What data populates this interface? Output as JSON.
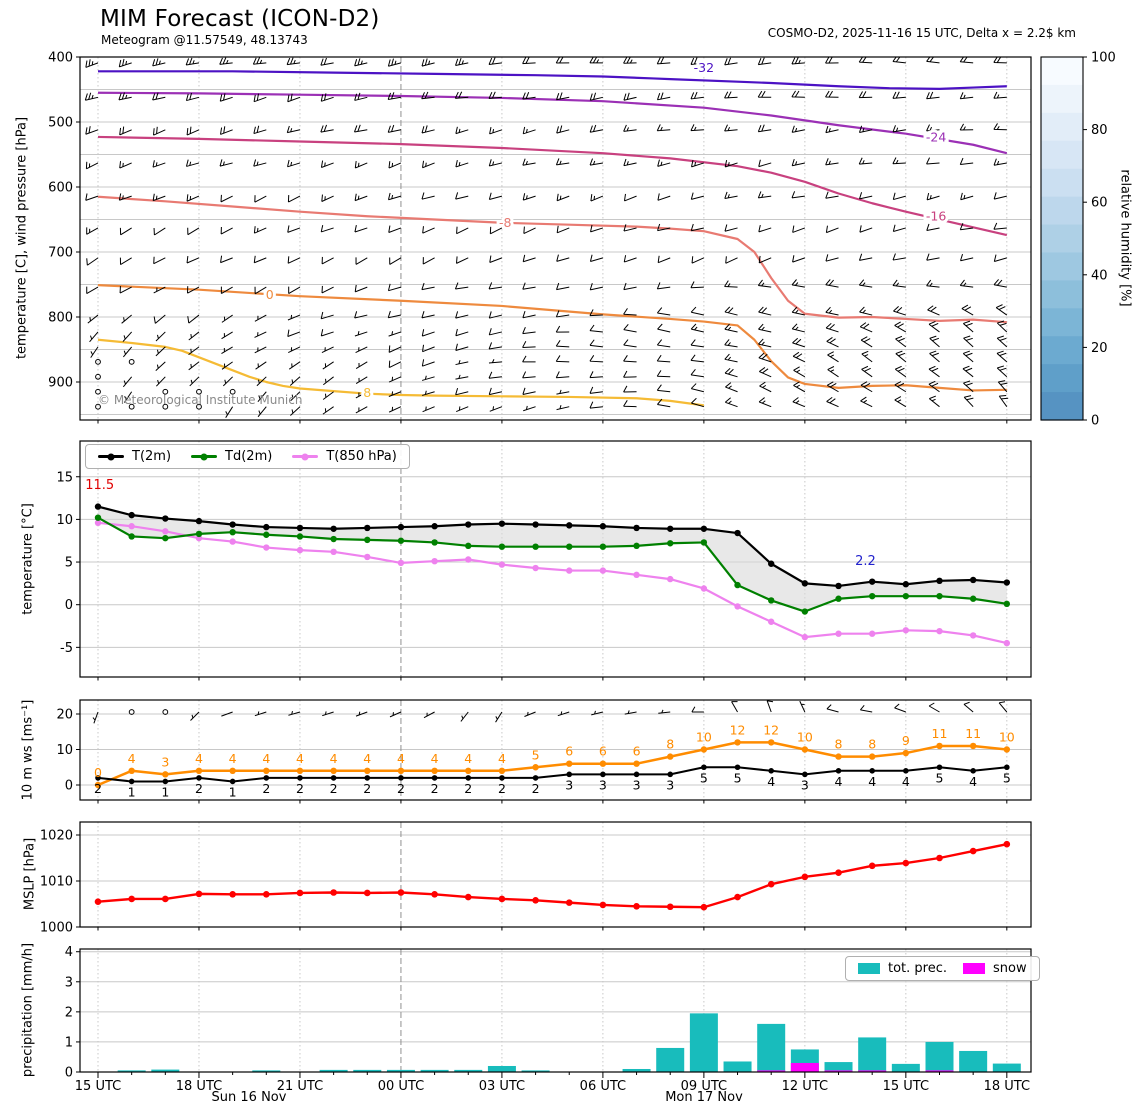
{
  "header": {
    "title": "MIM Forecast (ICON-D2)",
    "subtitle": "Meteogram @11.57549, 48.13743",
    "right_info": "COSMO-D2, 2025-11-16 15 UTC, Delta x = 2.2$ km"
  },
  "copyright": "© Meteorological Institute Munich",
  "time_axis": {
    "start": "2025-11-16 15 UTC",
    "n_hours": 28,
    "tick_labels": [
      "15 UTC",
      "18 UTC",
      "21 UTC",
      "00 UTC",
      "03 UTC",
      "06 UTC",
      "09 UTC",
      "12 UTC",
      "15 UTC",
      "18 UTC"
    ],
    "day_labels": [
      {
        "text": "Sun 16 Nov",
        "center_hour": 4.5
      },
      {
        "text": "Mon 17 Nov",
        "center_hour": 18
      }
    ]
  },
  "chart_data": [
    {
      "id": "upper-air-panel",
      "type": "line",
      "ylabel": "temperature [C], wind pressure [hPa]",
      "yticks": [
        400,
        500,
        600,
        700,
        800,
        900
      ],
      "ylim": [
        400,
        958
      ],
      "grid_every_hpa": 50,
      "contours": [
        {
          "label": "-32",
          "color": "#4c12c4",
          "label_at": [
            18,
            417
          ],
          "points": [
            [
              0,
              422
            ],
            [
              4,
              422
            ],
            [
              7,
              424
            ],
            [
              10,
              426
            ],
            [
              13,
              428
            ],
            [
              15,
              430
            ],
            [
              16.5,
              433
            ],
            [
              17,
              434
            ],
            [
              19,
              438
            ],
            [
              20,
              440
            ],
            [
              22,
              445
            ],
            [
              23.5,
              448
            ],
            [
              25,
              449
            ],
            [
              26,
              447
            ],
            [
              27,
              445
            ]
          ]
        },
        {
          "label": "-24",
          "color": "#9b30b5",
          "label_at": [
            24.9,
            524
          ],
          "points": [
            [
              0,
              455
            ],
            [
              3,
              456
            ],
            [
              6,
              458
            ],
            [
              9,
              460
            ],
            [
              12,
              463
            ],
            [
              15,
              468
            ],
            [
              18,
              478
            ],
            [
              20,
              490
            ],
            [
              22,
              505
            ],
            [
              24,
              518
            ],
            [
              26,
              535
            ],
            [
              27,
              548
            ]
          ]
        },
        {
          "label": "-16",
          "color": "#c8417f",
          "label_at": [
            24.9,
            645
          ],
          "points": [
            [
              0,
              523
            ],
            [
              3,
              526
            ],
            [
              6,
              530
            ],
            [
              9,
              534
            ],
            [
              12,
              540
            ],
            [
              15,
              548
            ],
            [
              17,
              556
            ],
            [
              19,
              568
            ],
            [
              20,
              578
            ],
            [
              21,
              592
            ],
            [
              22,
              610
            ],
            [
              23,
              625
            ],
            [
              24,
              638
            ],
            [
              26,
              662
            ],
            [
              27,
              674
            ]
          ]
        },
        {
          "label": "-8",
          "color": "#e87a72",
          "label_at": [
            12.1,
            655
          ],
          "points": [
            [
              0,
              615
            ],
            [
              2,
              622
            ],
            [
              4,
              630
            ],
            [
              6,
              638
            ],
            [
              8,
              645
            ],
            [
              10,
              650
            ],
            [
              12,
              655
            ],
            [
              14,
              658
            ],
            [
              16,
              661
            ],
            [
              17,
              664
            ],
            [
              18,
              668
            ],
            [
              19,
              680
            ],
            [
              19.5,
              700
            ],
            [
              20,
              740
            ],
            [
              20.5,
              775
            ],
            [
              21,
              795
            ],
            [
              22,
              801
            ],
            [
              23,
              800
            ],
            [
              24,
              803
            ],
            [
              25,
              806
            ],
            [
              26,
              804
            ],
            [
              27,
              808
            ]
          ]
        },
        {
          "label": "0",
          "color": "#ee8a3e",
          "label_at": [
            5.1,
            766
          ],
          "points": [
            [
              0,
              751
            ],
            [
              3,
              758
            ],
            [
              6,
              768
            ],
            [
              9,
              775
            ],
            [
              12,
              783
            ],
            [
              15,
              796
            ],
            [
              17,
              803
            ],
            [
              18,
              807
            ],
            [
              19,
              813
            ],
            [
              19.5,
              835
            ],
            [
              20,
              868
            ],
            [
              20.5,
              893
            ],
            [
              21,
              903
            ],
            [
              22,
              909
            ],
            [
              23,
              906
            ],
            [
              24,
              905
            ],
            [
              25,
              909
            ],
            [
              26,
              913
            ],
            [
              27,
              912
            ]
          ]
        },
        {
          "label": "8",
          "color": "#f5bb35",
          "label_at": [
            8,
            917
          ],
          "points": [
            [
              0,
              835
            ],
            [
              1,
              840
            ],
            [
              2,
              846
            ],
            [
              2.5,
              852
            ],
            [
              3,
              862
            ],
            [
              3.5,
              872
            ],
            [
              4,
              882
            ],
            [
              4.5,
              892
            ],
            [
              5,
              900
            ],
            [
              5.5,
              906
            ],
            [
              6,
              910
            ],
            [
              7,
              914
            ],
            [
              8,
              918
            ],
            [
              9,
              920
            ],
            [
              10,
              921
            ],
            [
              12,
              922
            ],
            [
              14,
              923
            ],
            [
              16,
              925
            ],
            [
              17,
              929
            ],
            [
              18,
              936
            ]
          ]
        }
      ],
      "wind_barbs": {
        "note": "approximate speeds [kt] and directions [deg from N], linearly varying over the 28 hourly columns",
        "front_from_hour": 19,
        "front_boost_kt": 5,
        "rows": [
          {
            "p": 409,
            "kt": [
              25,
              20
            ],
            "dir": [
              255,
              272
            ]
          },
          {
            "p": 462,
            "kt": [
              22,
              18
            ],
            "dir": [
              252,
              270
            ]
          },
          {
            "p": 512,
            "kt": [
              20,
              15
            ],
            "dir": [
              250,
              266
            ]
          },
          {
            "p": 563,
            "kt": [
              15,
              13
            ],
            "dir": [
              248,
              262
            ]
          },
          {
            "p": 614,
            "kt": [
              13,
              12
            ],
            "dir": [
              245,
              260
            ]
          },
          {
            "p": 663,
            "kt": [
              12,
              10
            ],
            "dir": [
              242,
              258
            ]
          },
          {
            "p": 709,
            "kt": [
              10,
              10
            ],
            "dir": [
              240,
              256
            ]
          },
          {
            "p": 754,
            "kt": [
              8,
              12
            ],
            "dir": [
              235,
              285
            ]
          },
          {
            "p": 797,
            "kt": [
              6,
              14
            ],
            "dir": [
              230,
              300
            ]
          },
          {
            "p": 823,
            "kt": [
              5,
              15
            ],
            "dir": [
              225,
              308
            ]
          },
          {
            "p": 846,
            "kt": [
              4,
              15
            ],
            "dir": [
              220,
              312
            ]
          },
          {
            "p": 869,
            "kt": [
              3,
              15
            ],
            "dir": [
              215,
              316
            ]
          },
          {
            "p": 892,
            "kt": [
              2,
              16
            ],
            "dir": [
              210,
              318
            ]
          },
          {
            "p": 915,
            "kt": [
              1,
              15
            ],
            "dir": [
              205,
              320
            ]
          },
          {
            "p": 938,
            "kt": [
              1,
              14
            ],
            "dir": [
              200,
              320
            ]
          }
        ]
      },
      "colorbar": {
        "label": "relative humidity [%]",
        "ticks": [
          0,
          20,
          40,
          60,
          80,
          100
        ],
        "colors": [
          "#f7fbff",
          "#edf4fb",
          "#e2edf8",
          "#d7e6f5",
          "#cbdff1",
          "#bdd7ec",
          "#aed0e6",
          "#9ec8e1",
          "#8dbfdb",
          "#7cb5d6",
          "#6caad0",
          "#5f9fc9",
          "#5693c2"
        ]
      }
    },
    {
      "id": "temperature-panel",
      "type": "line",
      "ylabel": "temperature [°C]",
      "yticks": [
        -5,
        0,
        5,
        10,
        15
      ],
      "ylim": [
        -8.5,
        19.2
      ],
      "series": [
        {
          "name": "T(2m)",
          "color": "#000000",
          "values": [
            11.5,
            10.5,
            10.1,
            9.8,
            9.4,
            9.1,
            9.0,
            8.9,
            9.0,
            9.1,
            9.2,
            9.4,
            9.5,
            9.4,
            9.3,
            9.2,
            9.0,
            8.9,
            8.9,
            8.4,
            4.8,
            2.5,
            2.2,
            2.7,
            2.4,
            2.8,
            2.9,
            2.6
          ]
        },
        {
          "name": "Td(2m)",
          "color": "#008000",
          "values": [
            10.2,
            8.0,
            7.8,
            8.3,
            8.5,
            8.2,
            8.0,
            7.7,
            7.6,
            7.5,
            7.3,
            6.9,
            6.8,
            6.8,
            6.8,
            6.8,
            6.9,
            7.2,
            7.3,
            2.3,
            0.5,
            -0.8,
            0.7,
            1.0,
            1.0,
            1.0,
            0.7,
            0.1
          ]
        },
        {
          "name": "T(850 hPa)",
          "color": "#ee82ee",
          "values": [
            9.6,
            9.2,
            8.6,
            7.8,
            7.4,
            6.7,
            6.4,
            6.2,
            5.6,
            4.9,
            5.1,
            5.3,
            4.7,
            4.3,
            4.0,
            4.0,
            3.5,
            3.0,
            1.9,
            -0.2,
            -2.0,
            -3.8,
            -3.4,
            -3.4,
            -3.0,
            -3.1,
            -3.6,
            -4.5
          ]
        }
      ],
      "fill_between": {
        "upper": "T(2m)",
        "lower": "Td(2m)",
        "color": "#d8d8d8"
      },
      "annotations": [
        {
          "text": "11.5",
          "color": "#e00000",
          "hour": 0.05,
          "value": 13.8
        },
        {
          "text": "2.2",
          "color": "#2222cc",
          "hour": 22.8,
          "value": 4.9
        }
      ]
    },
    {
      "id": "wind-panel",
      "type": "line",
      "ylabel": "10 m ws [ms⁻¹]",
      "yticks": [
        0,
        10,
        20
      ],
      "ylim": [
        -4.2,
        24
      ],
      "series": [
        {
          "name": "10 m wind speed",
          "color": "#000000",
          "label_position": "below",
          "values": [
            2,
            1,
            1,
            2,
            1,
            2,
            2,
            2,
            2,
            2,
            2,
            2,
            2,
            2,
            3,
            3,
            3,
            3,
            5,
            5,
            4,
            3,
            4,
            4,
            4,
            5,
            4,
            5
          ]
        },
        {
          "name": "gusts",
          "color": "#ff8c00",
          "label_position": "above",
          "values": [
            0,
            4,
            3,
            4,
            4,
            4,
            4,
            4,
            4,
            4,
            4,
            4,
            4,
            5,
            6,
            6,
            6,
            8,
            10,
            12,
            12,
            10,
            8,
            8,
            9,
            11,
            11,
            10
          ]
        }
      ],
      "barbs_10m": {
        "note": "hourly 10 m wind barbs, dir 0 = calm circle",
        "dir": [
          200,
          0,
          0,
          225,
          250,
          252,
          254,
          252,
          250,
          246,
          242,
          218,
          212,
          248,
          252,
          256,
          260,
          264,
          270,
          330,
          340,
          335,
          285,
          280,
          290,
          300,
          310,
          320
        ]
      }
    },
    {
      "id": "mslp-panel",
      "type": "line",
      "ylabel": "MSLP [hPa]",
      "yticks": [
        1000,
        1010,
        1020
      ],
      "ylim": [
        1000,
        1022.8
      ],
      "series": [
        {
          "name": "MSLP",
          "color": "#ff0000",
          "values": [
            1005.5,
            1006.1,
            1006.1,
            1007.2,
            1007.1,
            1007.1,
            1007.4,
            1007.5,
            1007.4,
            1007.5,
            1007.1,
            1006.5,
            1006.1,
            1005.8,
            1005.3,
            1004.8,
            1004.5,
            1004.4,
            1004.3,
            1006.5,
            1009.3,
            1010.9,
            1011.8,
            1013.3,
            1013.9,
            1015.0,
            1016.5,
            1018.0
          ]
        }
      ]
    },
    {
      "id": "precipitation-panel",
      "type": "bar",
      "ylabel": "precipitation [mm/h]",
      "yticks": [
        0,
        1,
        2,
        3,
        4
      ],
      "ylim": [
        0,
        4.1
      ],
      "series": [
        {
          "name": "tot. prec.",
          "color": "#18bcbc",
          "values": [
            0,
            0.04,
            0.08,
            0,
            0,
            0.04,
            0,
            0.07,
            0.07,
            0.07,
            0.07,
            0.07,
            0.2,
            0.03,
            0,
            0,
            0.1,
            0.8,
            1.95,
            0.35,
            1.6,
            0.75,
            0.33,
            1.15,
            0.27,
            1.0,
            0.7,
            0.28
          ]
        },
        {
          "name": "snow",
          "color": "#ff00ff",
          "values": [
            0,
            0,
            0,
            0,
            0,
            0,
            0,
            0,
            0,
            0,
            0,
            0,
            0,
            0,
            0,
            0,
            0,
            0,
            0,
            0,
            0.05,
            0.3,
            0.05,
            0.05,
            0,
            0.05,
            0,
            0
          ]
        }
      ],
      "legend_position": "top-right"
    }
  ]
}
